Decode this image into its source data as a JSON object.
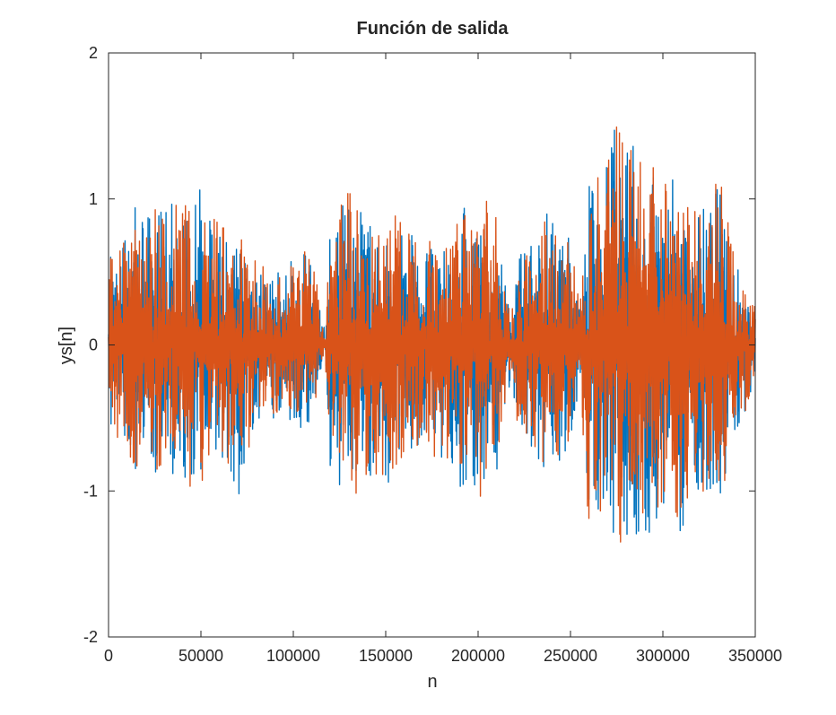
{
  "chart_data": {
    "type": "line",
    "title": "Función de salida",
    "xlabel": "n",
    "ylabel": "ys[n]",
    "xlim": [
      0,
      350000
    ],
    "ylim": [
      -2,
      2
    ],
    "grid": false,
    "x_ticks": [
      0,
      50000,
      100000,
      150000,
      200000,
      250000,
      300000,
      350000
    ],
    "x_tick_labels": [
      "0",
      "50000",
      "100000",
      "150000",
      "200000",
      "250000",
      "300000",
      "350000"
    ],
    "y_ticks": [
      -2,
      -1,
      0,
      1,
      2
    ],
    "y_tick_labels": [
      "-2",
      "-1",
      "0",
      "1",
      "2"
    ],
    "series": [
      {
        "color": "#0072bd",
        "x": [
          0,
          10000,
          20000,
          30000,
          40000,
          50000,
          60000,
          70000,
          80000,
          90000,
          100000,
          110000,
          117000,
          120000,
          130000,
          140000,
          150000,
          160000,
          170000,
          180000,
          190000,
          200000,
          210000,
          218000,
          220000,
          230000,
          240000,
          250000,
          255000,
          260000,
          270000,
          280000,
          290000,
          300000,
          310000,
          320000,
          330000,
          340000,
          350000
        ],
        "upper": [
          0.7,
          0.9,
          1.0,
          1.0,
          1.05,
          1.1,
          0.9,
          0.8,
          0.55,
          0.5,
          0.7,
          0.75,
          0.1,
          0.95,
          1.2,
          1.05,
          0.8,
          0.95,
          0.7,
          0.7,
          0.95,
          1.15,
          0.9,
          0.2,
          0.6,
          0.8,
          1.1,
          0.8,
          0.3,
          1.1,
          1.5,
          1.55,
          1.4,
          1.2,
          1.2,
          1.05,
          1.3,
          0.55,
          0.3
        ],
        "lower": [
          -0.65,
          -0.85,
          -1.0,
          -1.0,
          -1.05,
          -1.05,
          -0.9,
          -1.1,
          -0.6,
          -0.5,
          -0.65,
          -0.6,
          -0.1,
          -0.9,
          -1.1,
          -1.05,
          -1.12,
          -0.95,
          -0.7,
          -0.9,
          -1.0,
          -1.15,
          -0.95,
          -0.2,
          -0.6,
          -0.85,
          -1.1,
          -0.7,
          -0.3,
          -1.35,
          -1.3,
          -1.5,
          -1.4,
          -1.3,
          -1.3,
          -1.1,
          -1.25,
          -0.65,
          -0.3
        ]
      },
      {
        "color": "#d95319",
        "x": [
          0,
          10000,
          20000,
          30000,
          40000,
          50000,
          60000,
          70000,
          80000,
          90000,
          100000,
          110000,
          117000,
          120000,
          130000,
          140000,
          150000,
          160000,
          170000,
          180000,
          190000,
          200000,
          210000,
          218000,
          220000,
          230000,
          240000,
          250000,
          255000,
          260000,
          270000,
          280000,
          290000,
          300000,
          310000,
          320000,
          330000,
          340000,
          350000
        ],
        "upper": [
          0.65,
          0.9,
          0.95,
          1.0,
          1.05,
          1.0,
          0.9,
          0.8,
          0.6,
          0.5,
          0.65,
          0.75,
          0.1,
          0.9,
          1.25,
          1.0,
          0.85,
          1.0,
          0.7,
          0.75,
          0.95,
          1.2,
          0.9,
          0.2,
          0.6,
          0.8,
          1.1,
          0.8,
          0.3,
          1.2,
          1.5,
          1.6,
          1.45,
          1.2,
          1.15,
          1.05,
          1.35,
          0.55,
          0.3
        ],
        "lower": [
          -0.6,
          -0.85,
          -1.0,
          -1.0,
          -1.0,
          -1.05,
          -0.9,
          -1.0,
          -0.6,
          -0.5,
          -0.65,
          -0.6,
          -0.1,
          -0.85,
          -1.05,
          -1.05,
          -1.1,
          -0.95,
          -0.7,
          -0.9,
          -0.95,
          -1.15,
          -0.9,
          -0.2,
          -0.6,
          -0.85,
          -1.05,
          -0.7,
          -0.3,
          -1.35,
          -1.3,
          -1.5,
          -1.45,
          -1.3,
          -1.25,
          -1.1,
          -1.3,
          -0.6,
          -0.3
        ]
      }
    ]
  }
}
